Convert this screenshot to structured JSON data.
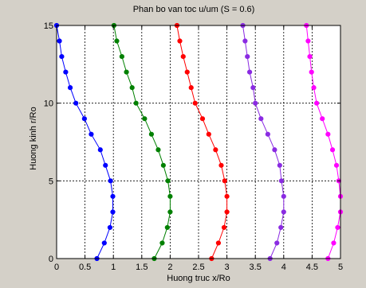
{
  "figure": {
    "background": "#d4d0c8",
    "axes_background": "#ffffff"
  },
  "chart_data": {
    "type": "line",
    "title": "Phan bo van toc u/um (S = 0.6)",
    "xlabel": "Huong truc x/Ro",
    "ylabel": "Huong kinh r/Ro",
    "xlim": [
      0,
      5
    ],
    "ylim": [
      0,
      15
    ],
    "xticks": [
      0,
      0.5,
      1,
      1.5,
      2,
      2.5,
      3,
      3.5,
      4,
      4.5,
      5
    ],
    "xtick_labels": [
      "0",
      "0.5",
      "1",
      "1.5",
      "2",
      "2.5",
      "3",
      "3.5",
      "4",
      "4.5",
      "5"
    ],
    "yticks": [
      0,
      5,
      10,
      15
    ],
    "ytick_labels": [
      "0",
      "5",
      "10",
      "15"
    ],
    "grid": "dotted",
    "marker": "filled-circle",
    "y": [
      0,
      1,
      2,
      3,
      4,
      5,
      6,
      7,
      8,
      9,
      10,
      11,
      12,
      13,
      14,
      15
    ],
    "series": [
      {
        "color": "#0000ff",
        "x": [
          0.71,
          0.84,
          0.94,
          0.99,
          0.99,
          0.95,
          0.86,
          0.77,
          0.61,
          0.49,
          0.34,
          0.24,
          0.16,
          0.09,
          0.05,
          0.0
        ]
      },
      {
        "color": "#008000",
        "x": [
          1.72,
          1.86,
          1.95,
          2.0,
          2.0,
          1.96,
          1.88,
          1.79,
          1.67,
          1.55,
          1.4,
          1.33,
          1.23,
          1.15,
          1.06,
          1.01
        ]
      },
      {
        "color": "#ff0000",
        "x": [
          2.73,
          2.85,
          2.95,
          3.0,
          3.0,
          2.96,
          2.9,
          2.8,
          2.68,
          2.57,
          2.44,
          2.37,
          2.3,
          2.23,
          2.17,
          2.12
        ]
      },
      {
        "color": "#8a2be2",
        "x": [
          3.76,
          3.88,
          3.95,
          4.0,
          4.0,
          3.96,
          3.93,
          3.84,
          3.72,
          3.6,
          3.5,
          3.46,
          3.4,
          3.36,
          3.32,
          3.28
        ]
      },
      {
        "color": "#ff00ff",
        "x": [
          4.78,
          4.88,
          4.95,
          5.0,
          5.0,
          4.97,
          4.93,
          4.86,
          4.78,
          4.68,
          4.58,
          4.53,
          4.49,
          4.46,
          4.43,
          4.4
        ]
      }
    ]
  }
}
